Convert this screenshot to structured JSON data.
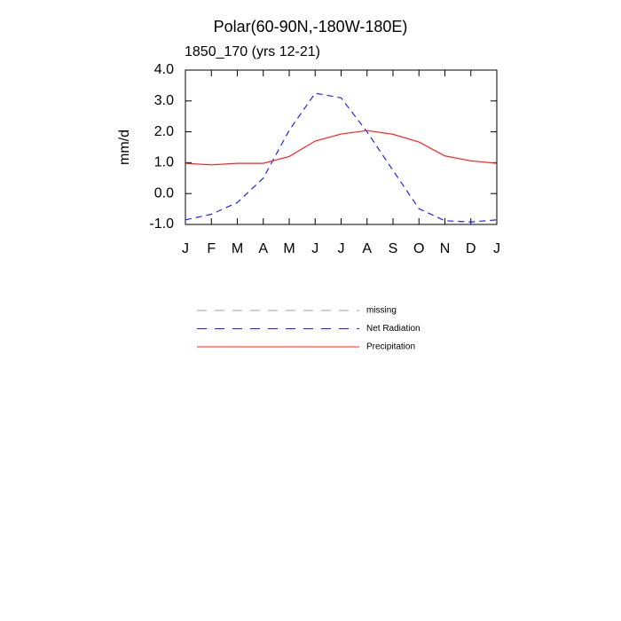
{
  "chart_data": {
    "type": "line",
    "title": "Polar(60-90N,-180W-180E)",
    "subtitle": "1850_170 (yrs 12-21)",
    "y_label": "mm/d",
    "categories": [
      "J",
      "F",
      "M",
      "A",
      "M",
      "J",
      "J",
      "A",
      "S",
      "O",
      "N",
      "D",
      "J"
    ],
    "series": [
      {
        "name": "missing",
        "color": "#a0a0a0",
        "dashed": true,
        "values": [
          null,
          null,
          null,
          null,
          null,
          null,
          null,
          null,
          null,
          null,
          null,
          null,
          null
        ]
      },
      {
        "name": "Net Radiation",
        "color": "#2020ff",
        "dashed": true,
        "values": [
          -0.85,
          -0.67,
          -0.29,
          0.5,
          2.05,
          3.25,
          3.1,
          2.0,
          0.75,
          -0.49,
          -0.88,
          -0.92,
          -0.85
        ]
      },
      {
        "name": "Precipitation",
        "color": "#ff2020",
        "dashed": false,
        "values": [
          0.98,
          0.93,
          0.98,
          0.98,
          1.2,
          1.7,
          1.93,
          2.04,
          1.92,
          1.67,
          1.22,
          1.06,
          0.98
        ]
      }
    ],
    "ylim": [
      -1,
      4
    ],
    "yticks": [
      {
        "value": -1,
        "label": "-1.0"
      },
      {
        "value": 0,
        "label": "0.0"
      },
      {
        "value": 1,
        "label": "1.0"
      },
      {
        "value": 2,
        "label": "2.0"
      },
      {
        "value": 3,
        "label": "3.0"
      },
      {
        "value": 4,
        "label": "4.0"
      }
    ],
    "grid": false
  }
}
